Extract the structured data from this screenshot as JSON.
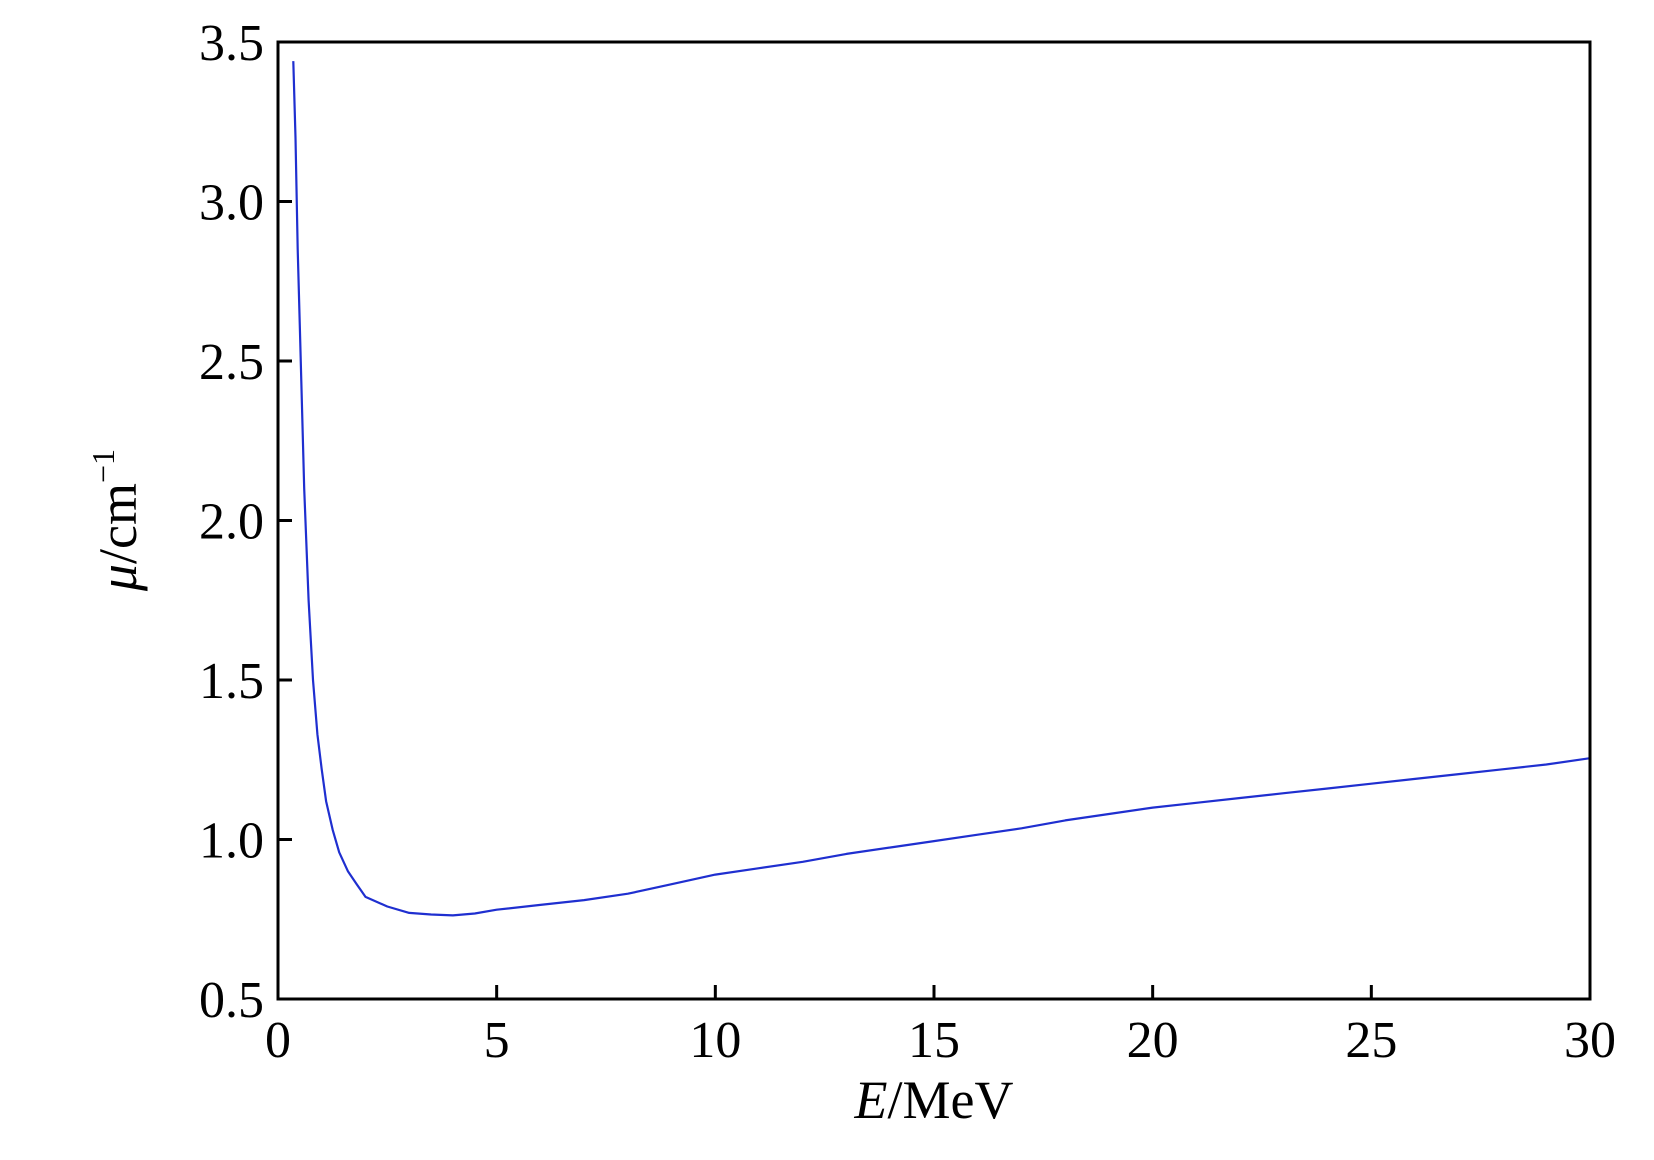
{
  "chart_data": {
    "type": "line",
    "title": "",
    "xlabel": {
      "symbol": "E",
      "unit": "/MeV"
    },
    "ylabel": {
      "symbol": "μ",
      "unit": "/cm",
      "unit_superscript": "−1"
    },
    "xlim": [
      0,
      30
    ],
    "ylim": [
      0.5,
      3.5
    ],
    "x_ticks": [
      0,
      5,
      10,
      15,
      20,
      25,
      30
    ],
    "x_tick_labels": [
      "0",
      "5",
      "10",
      "15",
      "20",
      "25",
      "30"
    ],
    "y_ticks": [
      0.5,
      1.0,
      1.5,
      2.0,
      2.5,
      3.0,
      3.5
    ],
    "y_tick_labels": [
      "0.5",
      "1.0",
      "1.5",
      "2.0",
      "2.5",
      "3.0",
      "3.5"
    ],
    "grid": false,
    "legend": "none",
    "series": [
      {
        "color": "#1f2fd0",
        "x": [
          0.35,
          0.4,
          0.45,
          0.5,
          0.6,
          0.7,
          0.8,
          0.9,
          1.0,
          1.1,
          1.25,
          1.4,
          1.6,
          1.8,
          2.0,
          2.5,
          3.0,
          3.5,
          4.0,
          4.5,
          5.0,
          6.0,
          7.0,
          8.0,
          9.0,
          10.0,
          11.0,
          12.0,
          13.0,
          14.0,
          15.0,
          16.0,
          17.0,
          18.0,
          19.0,
          20.0,
          21.0,
          22.0,
          23.0,
          24.0,
          25.0,
          26.0,
          27.0,
          28.0,
          29.0,
          30.0
        ],
        "y": [
          3.44,
          3.2,
          2.85,
          2.6,
          2.1,
          1.75,
          1.5,
          1.33,
          1.22,
          1.12,
          1.03,
          0.96,
          0.9,
          0.86,
          0.82,
          0.79,
          0.77,
          0.765,
          0.762,
          0.768,
          0.78,
          0.795,
          0.81,
          0.83,
          0.86,
          0.89,
          0.91,
          0.93,
          0.955,
          0.975,
          0.995,
          1.015,
          1.035,
          1.06,
          1.08,
          1.1,
          1.115,
          1.13,
          1.145,
          1.16,
          1.175,
          1.19,
          1.205,
          1.22,
          1.235,
          1.255
        ]
      }
    ]
  }
}
